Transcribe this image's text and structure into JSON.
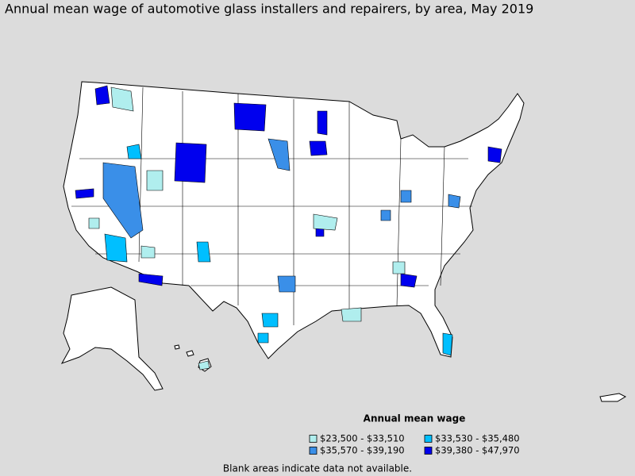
{
  "title": "Annual mean wage of automotive glass installers and repairers, by area, May 2019",
  "legend": {
    "title": "Annual mean wage",
    "items": [
      {
        "label": "$23,500 - $33,510",
        "color": "#b0eeee"
      },
      {
        "label": "$33,530 - $35,480",
        "color": "#00bfff"
      },
      {
        "label": "$35,570 - $39,190",
        "color": "#3a8fe8"
      },
      {
        "label": "$39,380 - $47,970",
        "color": "#0000ee"
      }
    ]
  },
  "note": "Blank areas indicate data not available."
}
